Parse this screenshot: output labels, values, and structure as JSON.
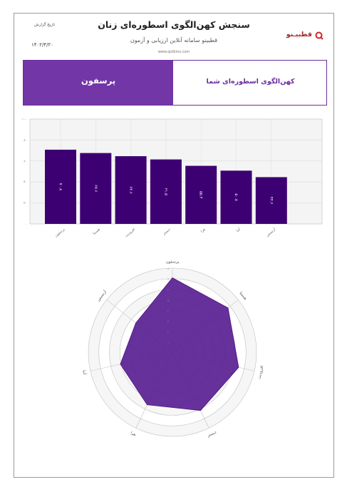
{
  "header": {
    "title": "سنجش کهن‌الگوی اسطوره‌ای زنان",
    "subtitle": "قطبینو سامانه آنلاین ارزیابی و آزمون",
    "url": "www.qotbino.com",
    "date_label": "تاریخ گزارش",
    "date_value": "۱۴۰۲/۴/۲۰",
    "logo_text": "قطبیـنو",
    "logo_icon": "q-logo-icon",
    "brand_color": "#9b2a2a"
  },
  "banner": {
    "left_label": "پرسفون",
    "right_label": "کهن‌الگوی اسطوره‌ای شما",
    "accent_color": "#7236a7"
  },
  "chart_data": [
    {
      "type": "bar",
      "categories": [
        "پرسفون",
        "هستیا",
        "افرودیت",
        "دیمیتر",
        "هرا",
        "آتنا",
        "آرتمیس"
      ],
      "values": [
        70.8,
        67.6,
        64.6,
        61.5,
        55.4,
        50.8,
        44.6
      ],
      "value_labels": [
        "۷۰.۸",
        "۶۷.۶",
        "۶۴.۶",
        "۶۱.۵",
        "۵۵.۴",
        "۵۰.۸",
        "۴۴.۶"
      ],
      "ylim": [
        0,
        100
      ],
      "yticks": [
        "۰",
        "۲۰",
        "۴۰",
        "۶۰",
        "۸۰",
        "۱۰۰"
      ],
      "grid": true,
      "bar_color": "#3d0073"
    },
    {
      "type": "radar",
      "categories": [
        "پرسفون",
        "هستیا",
        "افرودیت",
        "دیمیتر",
        "هرا",
        "آتنا",
        "آرتمیس"
      ],
      "values": [
        70.8,
        67.6,
        64.6,
        61.5,
        55.4,
        50.8,
        44.6
      ],
      "rlim": [
        0,
        80
      ],
      "rticks": [
        "۰",
        "۱۰",
        "۲۰",
        "۳۰",
        "۴۰",
        "۵۰",
        "۶۰",
        "۷۰",
        "۸۰"
      ],
      "fill_color": "#5a1f92"
    }
  ]
}
